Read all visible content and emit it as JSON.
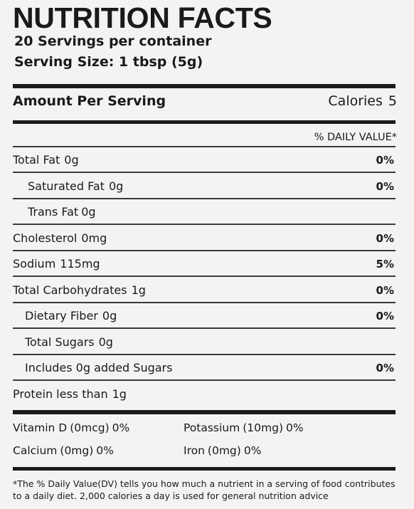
{
  "header": {
    "title": "NUTRITION FACTS",
    "servings_per_container": "20 Servings per container",
    "serving_size": "Serving Size: 1 tbsp (5g)"
  },
  "amount": {
    "label": "Amount Per Serving",
    "calories_label": "Calories",
    "calories_value": "5"
  },
  "daily_value_header": "% DAILY VALUE*",
  "nutrients": [
    {
      "name": "Total Fat",
      "amount": "0g",
      "dv": "0%"
    },
    {
      "name": "Saturated Fat",
      "amount": "0g",
      "dv": "0%"
    },
    {
      "name": "Trans Fat",
      "amount": "0g",
      "dv": ""
    },
    {
      "name": "Cholesterol",
      "amount": "0mg",
      "dv": "0%"
    },
    {
      "name": "Sodium",
      "amount": "115mg",
      "dv": "5%"
    },
    {
      "name": "Total Carbohydrates",
      "amount": "1g",
      "dv": "0%"
    },
    {
      "name": "Dietary Fiber",
      "amount": "0g",
      "dv": "0%"
    },
    {
      "name": "Total Sugars",
      "amount": "0g",
      "dv": ""
    },
    {
      "name": "Includes 0g added Sugars",
      "amount": "",
      "dv": "0%"
    },
    {
      "name": "Protein less than",
      "amount": "1g",
      "dv": ""
    }
  ],
  "vitamins": [
    {
      "name": "Vitamin D",
      "amount": "(0mcg)",
      "dv": "0%"
    },
    {
      "name": "Potassium",
      "amount": "(10mg)",
      "dv": "0%"
    },
    {
      "name": "Calcium",
      "amount": "(0mg)",
      "dv": "0%"
    },
    {
      "name": "Iron",
      "amount": "(0mg)",
      "dv": "0%"
    }
  ],
  "footnote": "*The % Daily Value(DV) tells you how much a nutrient in a serving of food contributes to a daily diet. 2,000 calories a day is used for general nutrition advice"
}
